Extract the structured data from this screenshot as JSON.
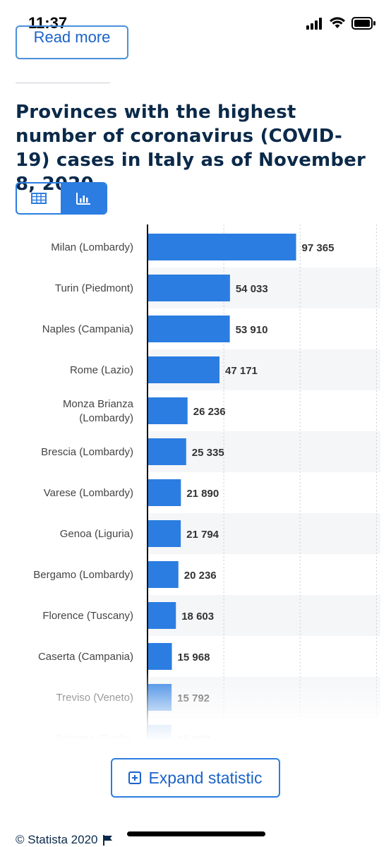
{
  "status_bar": {
    "time": "11:37"
  },
  "read_more": {
    "label": "Read more"
  },
  "title": "Provinces with the highest number of coronavirus (COVID-19) cases in Italy as of November 8, 2020",
  "view_toggle": {
    "options": [
      "table-icon",
      "bar-chart-icon"
    ],
    "active": "bar-chart-icon"
  },
  "chart_data": {
    "type": "bar",
    "orientation": "horizontal",
    "categories": [
      "Milan (Lombardy)",
      "Turin (Piedmont)",
      "Naples (Campania)",
      "Rome (Lazio)",
      "Monza Brianza (Lombardy)",
      "Brescia (Lombardy)",
      "Varese (Lombardy)",
      "Genoa (Liguria)",
      "Bergamo (Lombardy)",
      "Florence (Tuscany)",
      "Caserta (Campania)",
      "Treviso (Veneto)",
      "Bologna (Emilia-"
    ],
    "values": [
      97365,
      54033,
      53910,
      47171,
      26236,
      25335,
      21890,
      21794,
      20236,
      18603,
      15968,
      15792,
      15600
    ],
    "value_labels": [
      "97 365",
      "54 033",
      "53 910",
      "47 171",
      "26 236",
      "25 335",
      "21 890",
      "21 794",
      "20 236",
      "18 603",
      "15 968",
      "15 792",
      "15 6??"
    ],
    "xlim": [
      0,
      150000
    ],
    "grid": true,
    "bar_color": "#2b7de1"
  },
  "expand_button": {
    "label": "Expand statistic"
  },
  "footer": {
    "copyright": "© Statista 2020"
  }
}
